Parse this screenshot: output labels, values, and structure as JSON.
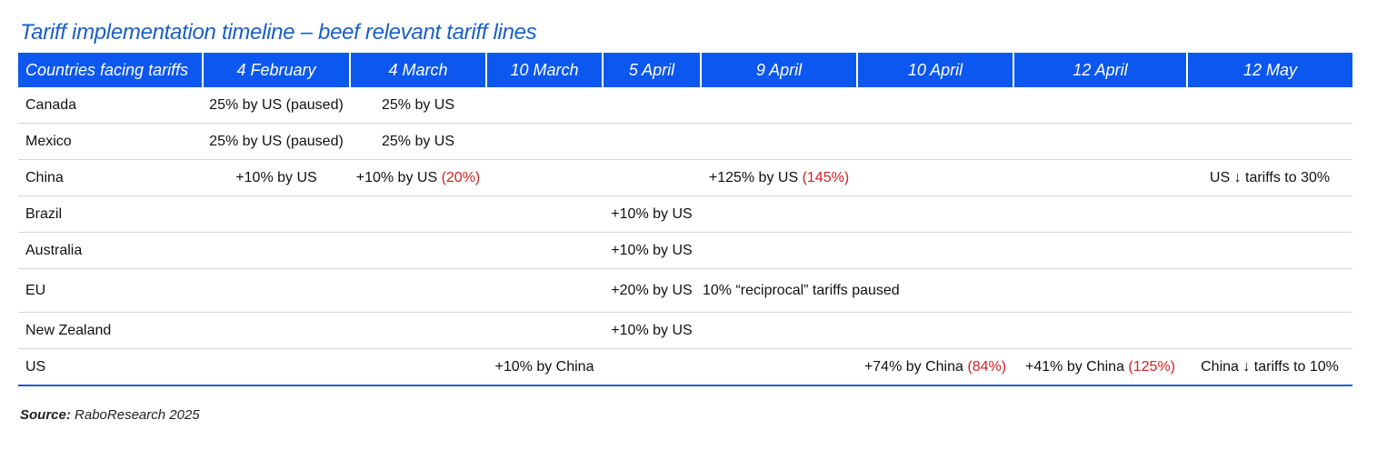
{
  "title": "Tariff implementation timeline – beef relevant tariff lines",
  "table": {
    "headers": [
      "Countries facing tariffs",
      "4 February",
      "4 March",
      "10 March",
      "5 April",
      "9 April",
      "10 April",
      "12 April",
      "12 May"
    ],
    "rows": [
      {
        "country": "Canada",
        "cells": [
          {
            "text": "25% by US (paused)"
          },
          {
            "text": "25% by US"
          },
          {
            "text": ""
          },
          {
            "text": ""
          },
          {
            "text": ""
          },
          {
            "text": ""
          },
          {
            "text": ""
          },
          {
            "text": ""
          }
        ]
      },
      {
        "country": "Mexico",
        "cells": [
          {
            "text": "25% by US (paused)"
          },
          {
            "text": "25% by US"
          },
          {
            "text": ""
          },
          {
            "text": ""
          },
          {
            "text": ""
          },
          {
            "text": ""
          },
          {
            "text": ""
          },
          {
            "text": ""
          }
        ]
      },
      {
        "country": "China",
        "cells": [
          {
            "text": "+10% by US"
          },
          {
            "text": "+10% by US",
            "total": "(20%)"
          },
          {
            "text": ""
          },
          {
            "text": ""
          },
          {
            "text": "+125% by US",
            "total": "(145%)"
          },
          {
            "text": ""
          },
          {
            "text": ""
          },
          {
            "text": "US ↓ tariffs to 30%"
          }
        ]
      },
      {
        "country": "Brazil",
        "cells": [
          {
            "text": ""
          },
          {
            "text": ""
          },
          {
            "text": ""
          },
          {
            "text": "+10% by US"
          },
          {
            "text": ""
          },
          {
            "text": ""
          },
          {
            "text": ""
          },
          {
            "text": ""
          }
        ]
      },
      {
        "country": "Australia",
        "cells": [
          {
            "text": ""
          },
          {
            "text": ""
          },
          {
            "text": ""
          },
          {
            "text": "+10% by US"
          },
          {
            "text": ""
          },
          {
            "text": ""
          },
          {
            "text": ""
          },
          {
            "text": ""
          }
        ]
      },
      {
        "country": "EU",
        "cells": [
          {
            "text": ""
          },
          {
            "text": ""
          },
          {
            "text": ""
          },
          {
            "text": "+20% by US"
          },
          {
            "text": "10% “reciprocal” tariffs paused"
          },
          {
            "text": ""
          },
          {
            "text": ""
          },
          {
            "text": ""
          }
        ]
      },
      {
        "country": "New Zealand",
        "cells": [
          {
            "text": ""
          },
          {
            "text": ""
          },
          {
            "text": ""
          },
          {
            "text": "+10% by US"
          },
          {
            "text": ""
          },
          {
            "text": ""
          },
          {
            "text": ""
          },
          {
            "text": ""
          }
        ]
      },
      {
        "country": "US",
        "cells": [
          {
            "text": ""
          },
          {
            "text": ""
          },
          {
            "text": "+10% by China"
          },
          {
            "text": ""
          },
          {
            "text": ""
          },
          {
            "text": "+74% by China",
            "total": "(84%)"
          },
          {
            "text": "+41% by China",
            "total": "(125%)"
          },
          {
            "text": "China ↓ tariffs to 10%"
          }
        ]
      }
    ]
  },
  "source": {
    "label": "Source:",
    "text": "RaboResearch 2025"
  },
  "colors": {
    "title": "#1a5fc7",
    "header_bg": "#0b57f0",
    "cumulative_total": "#d42020"
  }
}
